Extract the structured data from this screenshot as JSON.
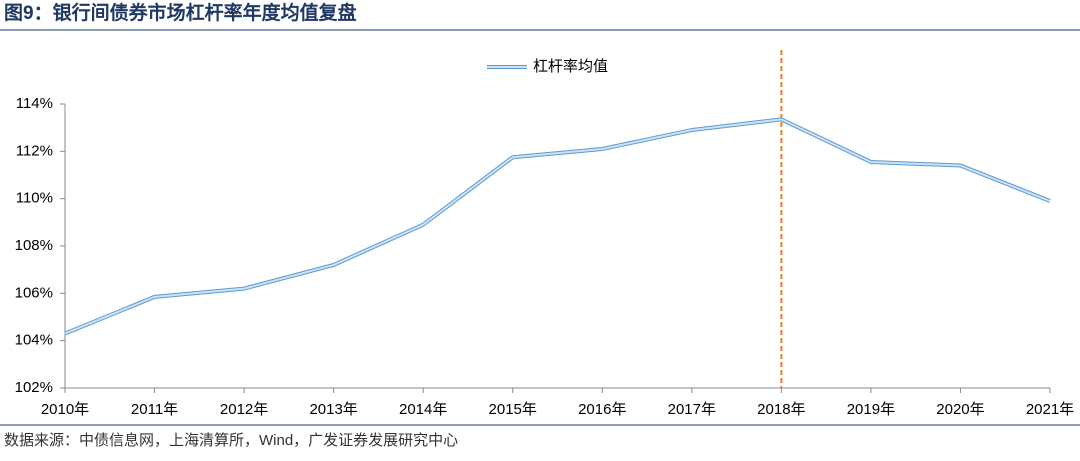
{
  "chart_data": {
    "type": "line",
    "title": "图9：银行间债券市场杠杆率年度均值复盘",
    "source": "数据来源：中债信息网，上海清算所，Wind，广发证券发展研究中心",
    "categories": [
      "2010年",
      "2011年",
      "2012年",
      "2013年",
      "2014年",
      "2015年",
      "2016年",
      "2017年",
      "2018年",
      "2019年",
      "2020年",
      "2021年"
    ],
    "series": [
      {
        "name": "杠杆率均值",
        "color": "#5b9bd5",
        "values": [
          104.3,
          105.85,
          106.2,
          107.2,
          108.9,
          111.75,
          112.1,
          112.9,
          113.35,
          111.55,
          111.4,
          109.9
        ]
      }
    ],
    "ylim": [
      102,
      114
    ],
    "yticks": [
      {
        "value": 102,
        "label": "102%"
      },
      {
        "value": 104,
        "label": "104%"
      },
      {
        "value": 106,
        "label": "106%"
      },
      {
        "value": 108,
        "label": "108%"
      },
      {
        "value": 110,
        "label": "110%"
      },
      {
        "value": 112,
        "label": "112%"
      },
      {
        "value": 114,
        "label": "114%"
      }
    ],
    "vline_category": "2018年",
    "vline_color": "#ed7d31"
  }
}
